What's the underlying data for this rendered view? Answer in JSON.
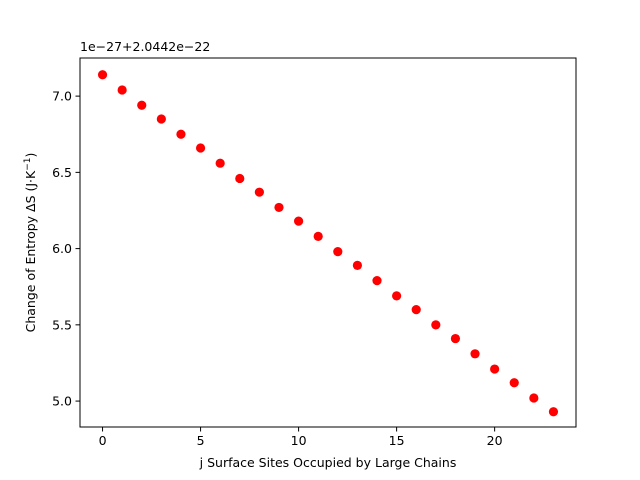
{
  "chart_data": {
    "type": "scatter",
    "xlabel": "j Surface Sites Occupied by Large Chains",
    "ylabel_text": "Change of Entropy ΔS (J·K",
    "ylabel_sup": "−1",
    "ylabel_close": ")",
    "y_offset_label": "1e−27+2.0442e−22",
    "xlim": [
      -1.15,
      24.15
    ],
    "ylim": [
      4.83,
      7.25
    ],
    "x_ticks": [
      0,
      5,
      10,
      15,
      20
    ],
    "x_tick_labels": [
      "0",
      "5",
      "10",
      "15",
      "20"
    ],
    "y_ticks": [
      5.0,
      5.5,
      6.0,
      6.5,
      7.0
    ],
    "y_tick_labels": [
      "5.0",
      "5.5",
      "6.0",
      "6.5",
      "7.0"
    ],
    "grid": false,
    "series": [
      {
        "color": "#ff0000",
        "marker": "circle",
        "x": [
          0,
          1,
          2,
          3,
          4,
          5,
          6,
          7,
          8,
          9,
          10,
          11,
          12,
          13,
          14,
          15,
          16,
          17,
          18,
          19,
          20,
          21,
          22,
          23
        ],
        "y": [
          7.14,
          7.04,
          6.94,
          6.85,
          6.75,
          6.66,
          6.56,
          6.46,
          6.37,
          6.27,
          6.18,
          6.08,
          5.98,
          5.89,
          5.79,
          5.69,
          5.6,
          5.5,
          5.41,
          5.31,
          5.21,
          5.12,
          5.02,
          4.93
        ]
      }
    ]
  }
}
